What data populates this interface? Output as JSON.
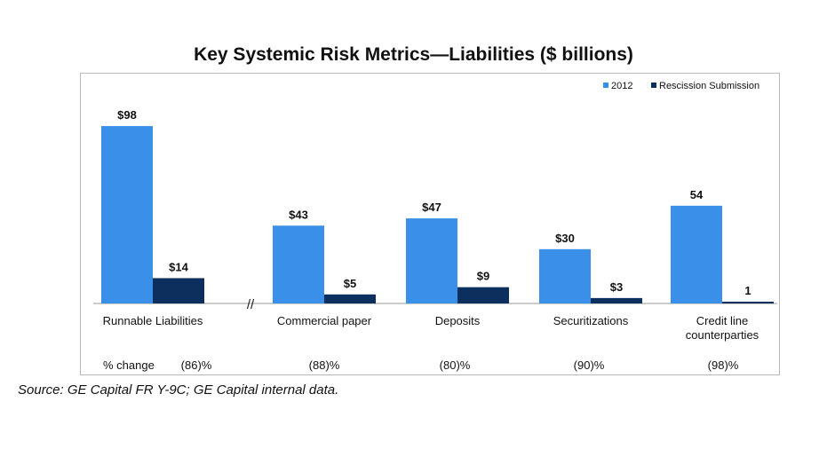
{
  "title": "Key Systemic Risk Metrics—Liabilities ($ billions)",
  "source": "Source: GE Capital FR Y-9C; GE Capital internal data.",
  "pct_change_label": "% change",
  "axis_break": "//",
  "chart_data": {
    "type": "bar",
    "categories": [
      [
        "Runnable Liabilities"
      ],
      [
        "Commercial paper"
      ],
      [
        "Deposits"
      ],
      [
        "Securitizations"
      ],
      [
        "Credit line",
        "counterparties"
      ]
    ],
    "series": [
      {
        "name": "2012",
        "color": "#3a8fe8",
        "values": [
          98,
          43,
          47,
          30,
          54
        ],
        "labels": [
          "$98",
          "$43",
          "$47",
          "$30",
          "54"
        ]
      },
      {
        "name": "Rescission Submission",
        "color": "#0d2f5e",
        "values": [
          14,
          5,
          9,
          3,
          1
        ],
        "labels": [
          "$14",
          "$5",
          "$9",
          "$3",
          "1"
        ]
      }
    ],
    "pct_change": [
      "(86)%",
      "(88)%",
      "(80)%",
      "(90)%",
      "(98)%"
    ],
    "axis_break_between": [
      0,
      1
    ],
    "ylim": [
      0,
      100
    ],
    "legend_position": "top-right",
    "grid": false
  }
}
